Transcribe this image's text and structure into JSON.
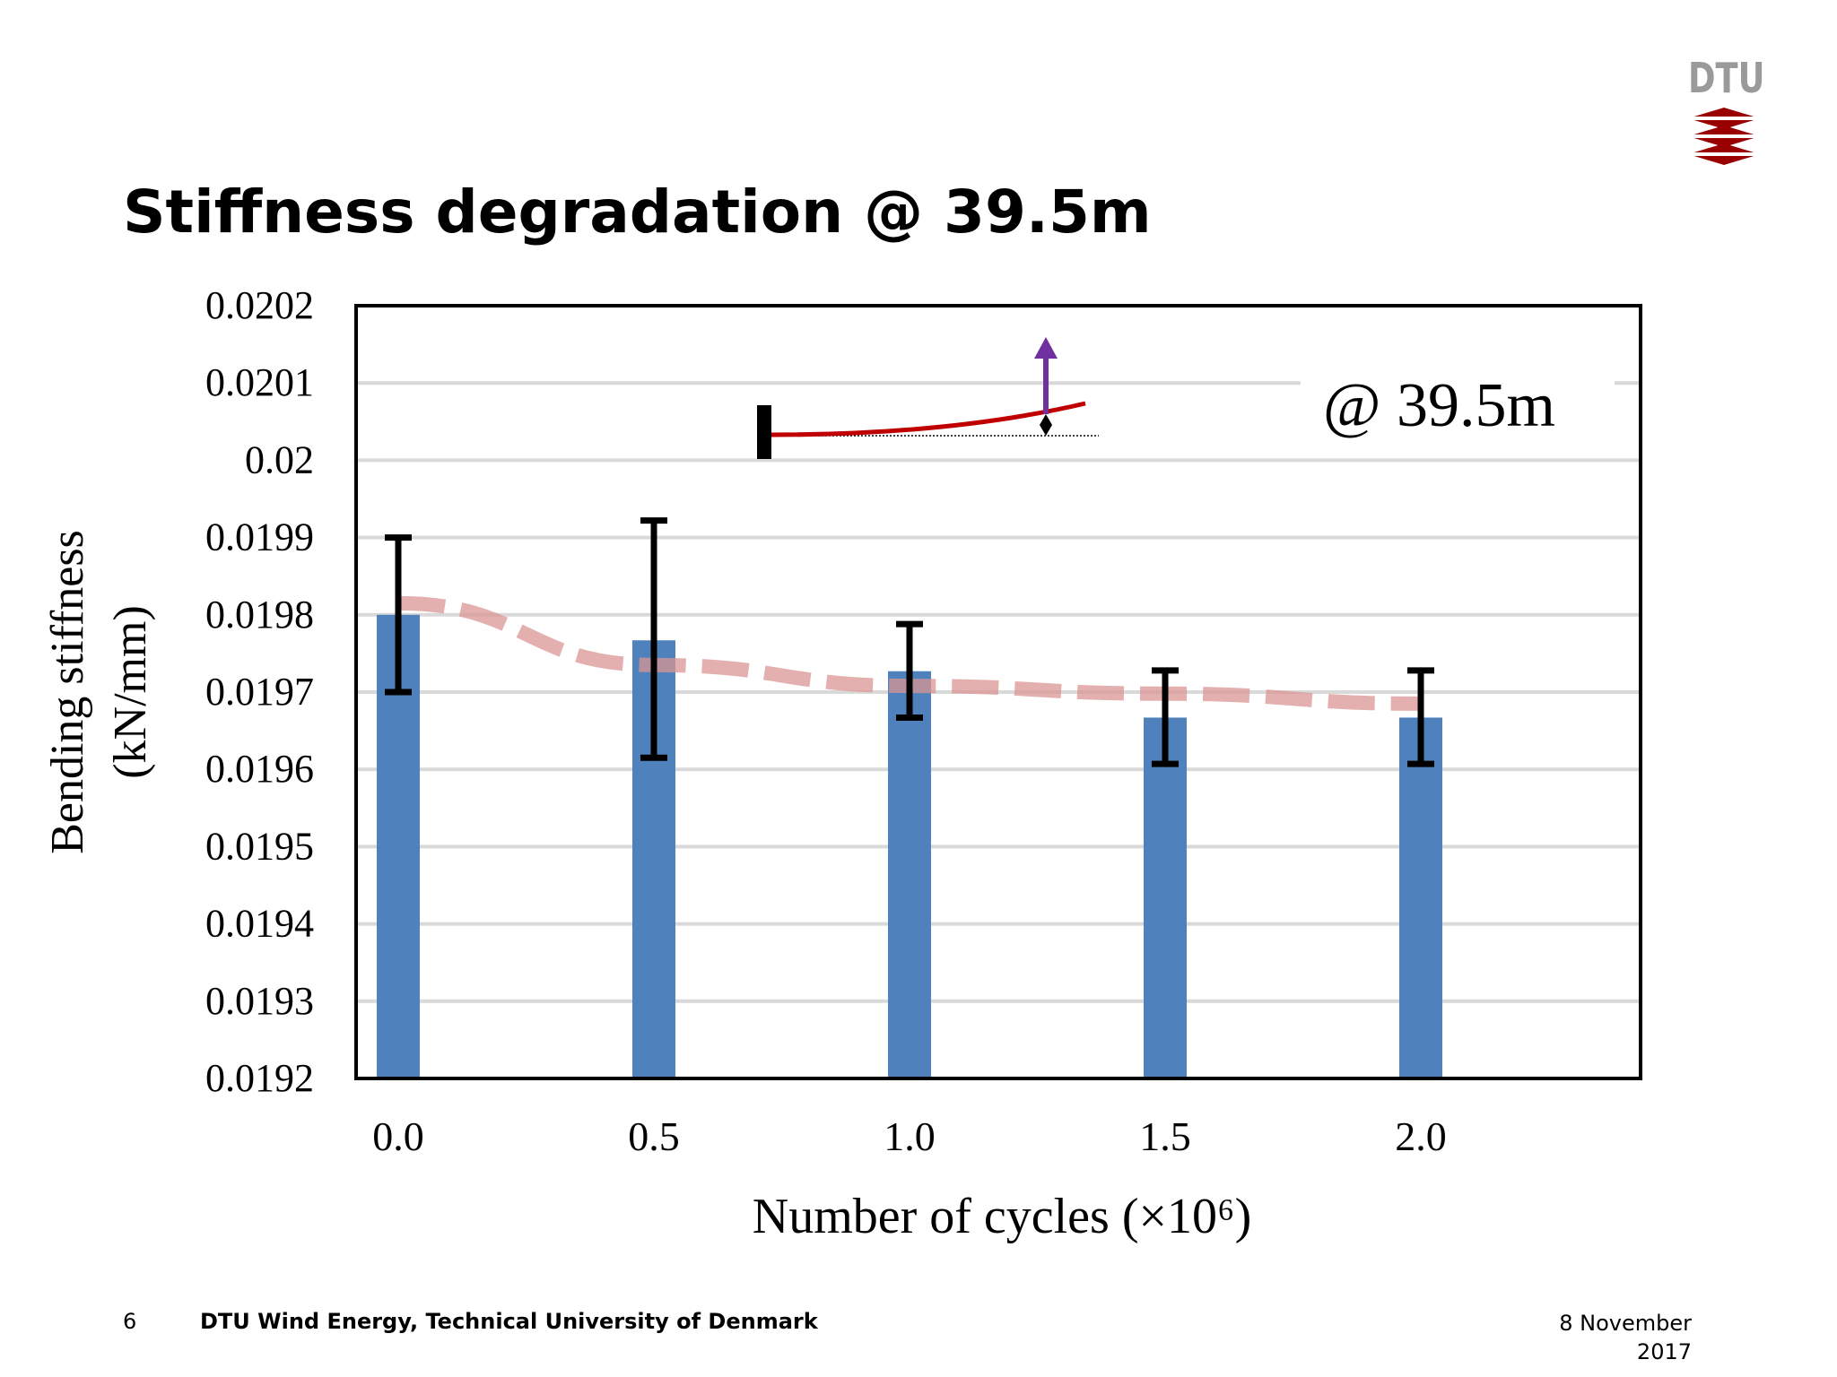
{
  "slide": {
    "title": "Stiffness degradation @ 39.5m",
    "page_number": "6",
    "organization": "DTU Wind Energy, Technical University of Denmark",
    "date_line1": "8 November",
    "date_line2": "2017",
    "logo_text": "DTU"
  },
  "colors": {
    "bar": "#4f81bd",
    "trend": "#d99594",
    "beam": "#c00000",
    "arrow": "#7030a0",
    "logo_red": "#990000",
    "logo_gray": "#9a9a9a"
  },
  "chart_data": {
    "type": "bar",
    "title": "",
    "xlabel": "Number of cycles (×10⁶)",
    "ylabel_line1": "Bending stiffness",
    "ylabel_line2": "(kN/mm)",
    "annotation": "@ 39.5m",
    "categories": [
      "0.0",
      "0.5",
      "1.0",
      "1.5",
      "2.0"
    ],
    "values": [
      0.0198,
      0.019767,
      0.019727,
      0.019667,
      0.019667
    ],
    "error_low": [
      0.0197,
      0.019615,
      0.019667,
      0.019607,
      0.019607
    ],
    "error_high": [
      0.0199,
      0.019922,
      0.019788,
      0.019728,
      0.019728
    ],
    "trend": [
      0.019815,
      0.019735,
      0.019708,
      0.019698,
      0.019685
    ],
    "ylim": [
      0.0192,
      0.0202
    ],
    "yticks": [
      "0.0192",
      "0.0193",
      "0.0194",
      "0.0195",
      "0.0196",
      "0.0197",
      "0.0198",
      "0.0199",
      "0.02",
      "0.0201",
      "0.0202"
    ],
    "grid": true,
    "legend": "none"
  }
}
